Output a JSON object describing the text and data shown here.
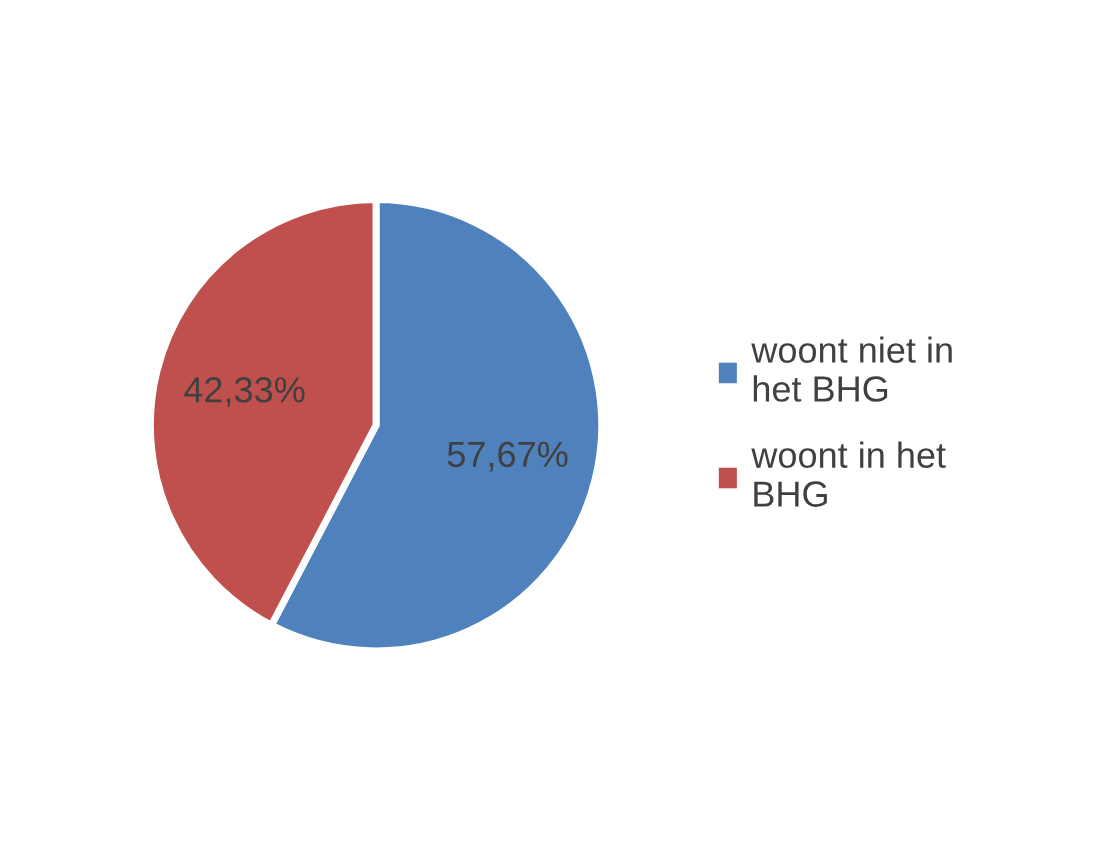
{
  "chart_data": {
    "type": "pie",
    "categories": [
      "woont niet in het BHG",
      "woont in het BHG"
    ],
    "values": [
      57.67,
      42.33
    ],
    "colors": [
      "#4f81bd",
      "#c0504d"
    ],
    "value_labels": [
      "57,67%",
      "42,33%"
    ],
    "legend": "right"
  }
}
